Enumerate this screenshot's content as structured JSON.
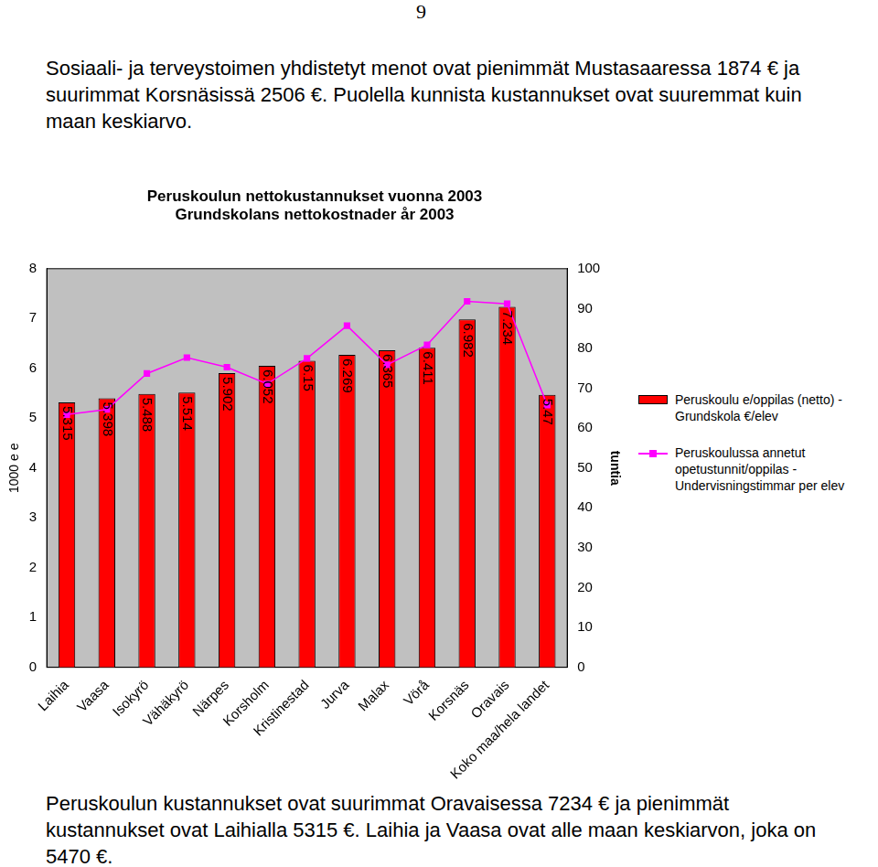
{
  "page_number": "9",
  "text_above": "Sosiaali- ja terveystoimen yhdistetyt menot ovat pienimmät Mustasaaressa 1874 € ja suurimmat Korsnäsissä 2506 €. Puolella kunnista kustannukset ovat suuremmat kuin maan keskiarvo.",
  "chart_data": {
    "type": "bar",
    "title": [
      "Peruskoulun nettokustannukset vuonna 2003",
      "Grundskolans nettokostnader år 2003"
    ],
    "categories": [
      "Laihia",
      "Vaasa",
      "Isokyrö",
      "Vähäkyrö",
      "Närpes",
      "Korsholm",
      "Kristinestad",
      "Jurva",
      "Malax",
      "Vörå",
      "Korsnäs",
      "Oravais",
      "Koko maa/hela landet"
    ],
    "series": [
      {
        "name": "Peruskoulu e/oppilas (netto) - Grundskola €/elev",
        "type": "bar",
        "color": "#ff0000",
        "data_labels": true,
        "values": [
          5.315,
          5.398,
          5.488,
          5.514,
          5.902,
          6.052,
          6.15,
          6.269,
          6.365,
          6.411,
          6.982,
          7.234,
          5.47
        ]
      },
      {
        "name": "Peruskoulussa annetut opetustunnit/oppilas - Undervisningstimmar per elev",
        "type": "line",
        "axis": "y2",
        "color": "#ff00ff",
        "marker": "square",
        "line_style": "solid",
        "values": [
          63.4,
          64.7,
          73.7,
          77.7,
          75.3,
          71.1,
          77.5,
          85.7,
          75.9,
          80.9,
          91.8,
          91.2,
          65.8
        ]
      }
    ],
    "y_label": "1000 e e",
    "y2_label": "tuntia",
    "ylim": [
      0,
      8
    ],
    "yticks": [
      0,
      1,
      2,
      3,
      4,
      5,
      6,
      7,
      8
    ],
    "y2lim": [
      0,
      100
    ],
    "y2ticks": [
      0,
      10,
      20,
      30,
      40,
      50,
      60,
      70,
      80,
      90,
      100
    ],
    "grid": false,
    "legend": "right"
  },
  "text_below": "Peruskoulun kustannukset ovat suurimmat Oravaisessa 7234 € ja pienimmät kustannukset ovat Laihialla 5315 €. Laihia ja Vaasa ovat alle maan keskiarvon, joka on 5470 €."
}
